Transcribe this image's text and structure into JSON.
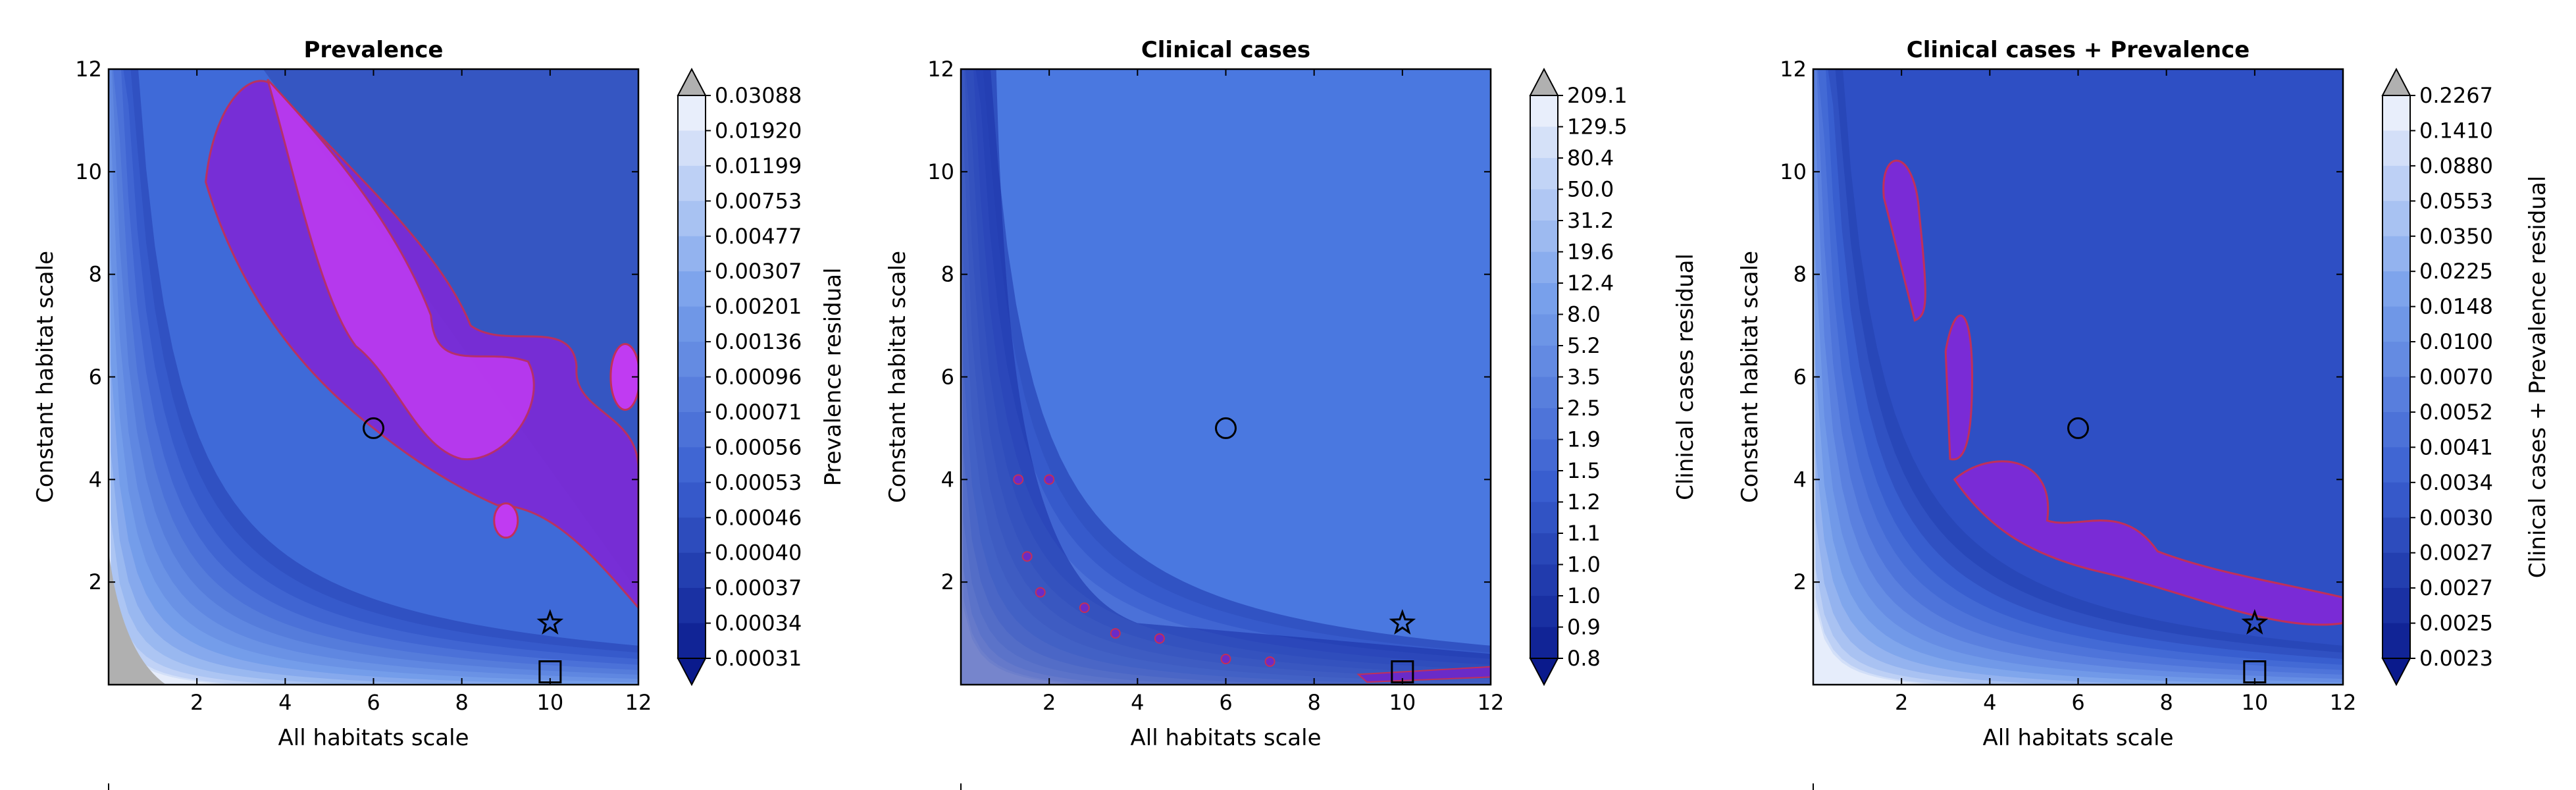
{
  "chart_data": [
    {
      "type": "heatmap",
      "title": "Prevalence",
      "xlabel": "All habitats scale",
      "ylabel": "Constant habitat scale",
      "xlim": [
        0,
        12
      ],
      "ylim": [
        0,
        12
      ],
      "xticks": [
        "2",
        "4",
        "6",
        "8",
        "10",
        "12"
      ],
      "yticks": [
        "2",
        "4",
        "6",
        "8",
        "10",
        "12"
      ],
      "colorbar_label": "Prevalence residual",
      "levels": [
        "0.00031",
        "0.00034",
        "0.00037",
        "0.00040",
        "0.00046",
        "0.00053",
        "0.00056",
        "0.00071",
        "0.00096",
        "0.00136",
        "0.00201",
        "0.00307",
        "0.00477",
        "0.00753",
        "0.01199",
        "0.01920",
        "0.03088"
      ],
      "markers": [
        {
          "shape": "circle",
          "x": 6,
          "y": 5
        },
        {
          "shape": "star",
          "x": 10,
          "y": 1.2
        },
        {
          "shape": "square",
          "x": 10,
          "y": 0.25
        }
      ],
      "highlight_region": "purple contour region along diagonal plus triangular shaded band from (3.5,12) to (12,1.8)"
    },
    {
      "type": "heatmap",
      "title": "Clinical cases",
      "xlabel": "All habitats scale",
      "ylabel": "Constant habitat scale",
      "xlim": [
        0,
        12
      ],
      "ylim": [
        0,
        12
      ],
      "xticks": [
        "2",
        "4",
        "6",
        "8",
        "10",
        "12"
      ],
      "yticks": [
        "2",
        "4",
        "6",
        "8",
        "10",
        "12"
      ],
      "colorbar_label": "Clinical cases residual",
      "levels": [
        "0.8",
        "0.9",
        "1.0",
        "1.0",
        "1.1",
        "1.2",
        "1.5",
        "1.9",
        "2.5",
        "3.5",
        "5.2",
        "8.0",
        "12.4",
        "19.6",
        "31.2",
        "50.0",
        "80.4",
        "129.5",
        "209.1"
      ],
      "markers": [
        {
          "shape": "circle",
          "x": 6,
          "y": 5
        },
        {
          "shape": "star",
          "x": 10,
          "y": 1.2
        },
        {
          "shape": "square",
          "x": 10,
          "y": 0.25
        }
      ]
    },
    {
      "type": "heatmap",
      "title": "Clinical cases + Prevalence",
      "xlabel": "All habitats scale",
      "ylabel": "Constant habitat scale",
      "xlim": [
        0,
        12
      ],
      "ylim": [
        0,
        12
      ],
      "xticks": [
        "2",
        "4",
        "6",
        "8",
        "10",
        "12"
      ],
      "yticks": [
        "2",
        "4",
        "6",
        "8",
        "10",
        "12"
      ],
      "colorbar_label": "Clinical cases + Prevalence residual",
      "levels": [
        "0.0023",
        "0.0025",
        "0.0027",
        "0.0027",
        "0.0030",
        "0.0034",
        "0.0041",
        "0.0052",
        "0.0070",
        "0.0100",
        "0.0148",
        "0.0225",
        "0.0350",
        "0.0553",
        "0.0880",
        "0.1410",
        "0.2267"
      ],
      "markers": [
        {
          "shape": "circle",
          "x": 6,
          "y": 5
        },
        {
          "shape": "star",
          "x": 10,
          "y": 1.2
        },
        {
          "shape": "square",
          "x": 10,
          "y": 0.25
        }
      ]
    }
  ],
  "colors": {
    "dark": "#0a1a8c",
    "mid": "#3a5fd0",
    "light": "#e8eefb",
    "purple": "#7a2bd6",
    "magenta": "#c03bf2",
    "contour": "#c0305a",
    "over": "#b0b0b0"
  }
}
